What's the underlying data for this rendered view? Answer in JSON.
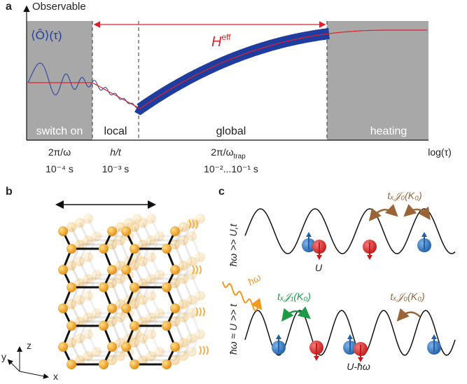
{
  "panel_a": {
    "label": "a",
    "y_axis_label": "Observable",
    "x_axis_label": "log(τ)",
    "observable_label": "⟨Ô⟩(τ)",
    "heff": [
      "H",
      "eff"
    ],
    "regions": [
      "switch on",
      "local",
      "global",
      "heating"
    ],
    "timescales": [
      {
        "name": [
          "2π/ω",
          ""
        ],
        "time": "10⁻⁴ s"
      },
      {
        "name": [
          "h/t",
          ""
        ],
        "time": "10⁻³ s"
      },
      {
        "name": [
          "2π/ω",
          "trap"
        ],
        "time": "10⁻²...10⁻¹ s"
      }
    ]
  },
  "panel_b": {
    "label": "b",
    "axes": [
      "z",
      "y",
      "x"
    ]
  },
  "panel_c": {
    "label": "c",
    "top": {
      "regime": "ħω >> U,t",
      "interaction": "U",
      "hopping": "tₓ𝒥₀(K₀)"
    },
    "bottom": {
      "regime": "ħω ≈ U >> t",
      "drive": "ħω",
      "assisted_hopping": "tₓ𝒥₁(K₀)",
      "hopping": "tₓ𝒥₀(K₀)",
      "interaction": "U-ħω"
    }
  }
}
